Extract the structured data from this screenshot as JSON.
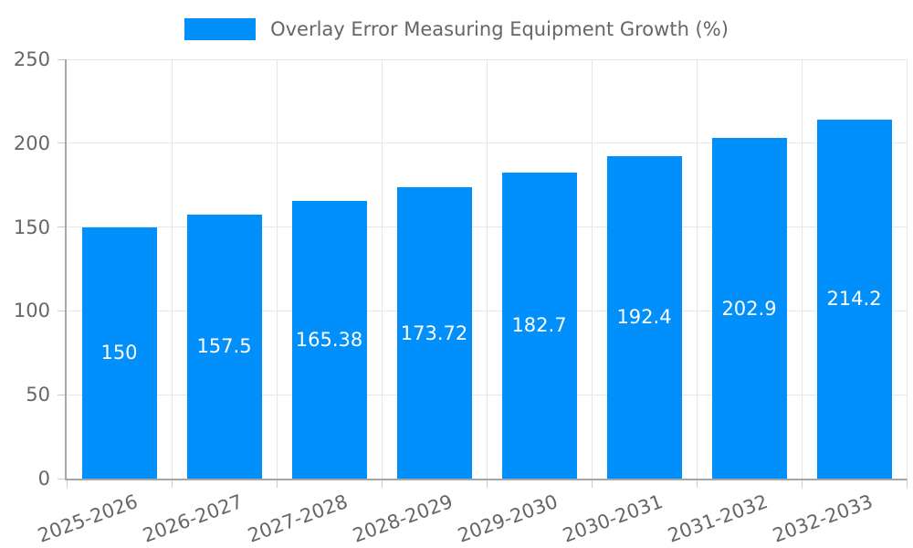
{
  "chart_data": {
    "type": "bar",
    "title": "",
    "legend": "Overlay Error Measuring Equipment Growth (%)",
    "legend_position": "top",
    "categories": [
      "2025-2026",
      "2026-2027",
      "2027-2028",
      "2028-2029",
      "2029-2030",
      "2030-2031",
      "2031-2032",
      "2032-2033"
    ],
    "values": [
      150,
      157.5,
      165.38,
      173.72,
      182.7,
      192.4,
      202.9,
      214.2
    ],
    "xlabel": "",
    "ylabel": "",
    "ylim": [
      0,
      250
    ],
    "yticks": [
      0,
      50,
      100,
      150,
      200,
      250
    ],
    "grid": true,
    "bar_color": "#008FFB",
    "value_label_color": "#ffffff",
    "axis_text_color": "#666666",
    "grid_color": "#e6e6e6",
    "axis_line_color": "#a6a6a6"
  }
}
